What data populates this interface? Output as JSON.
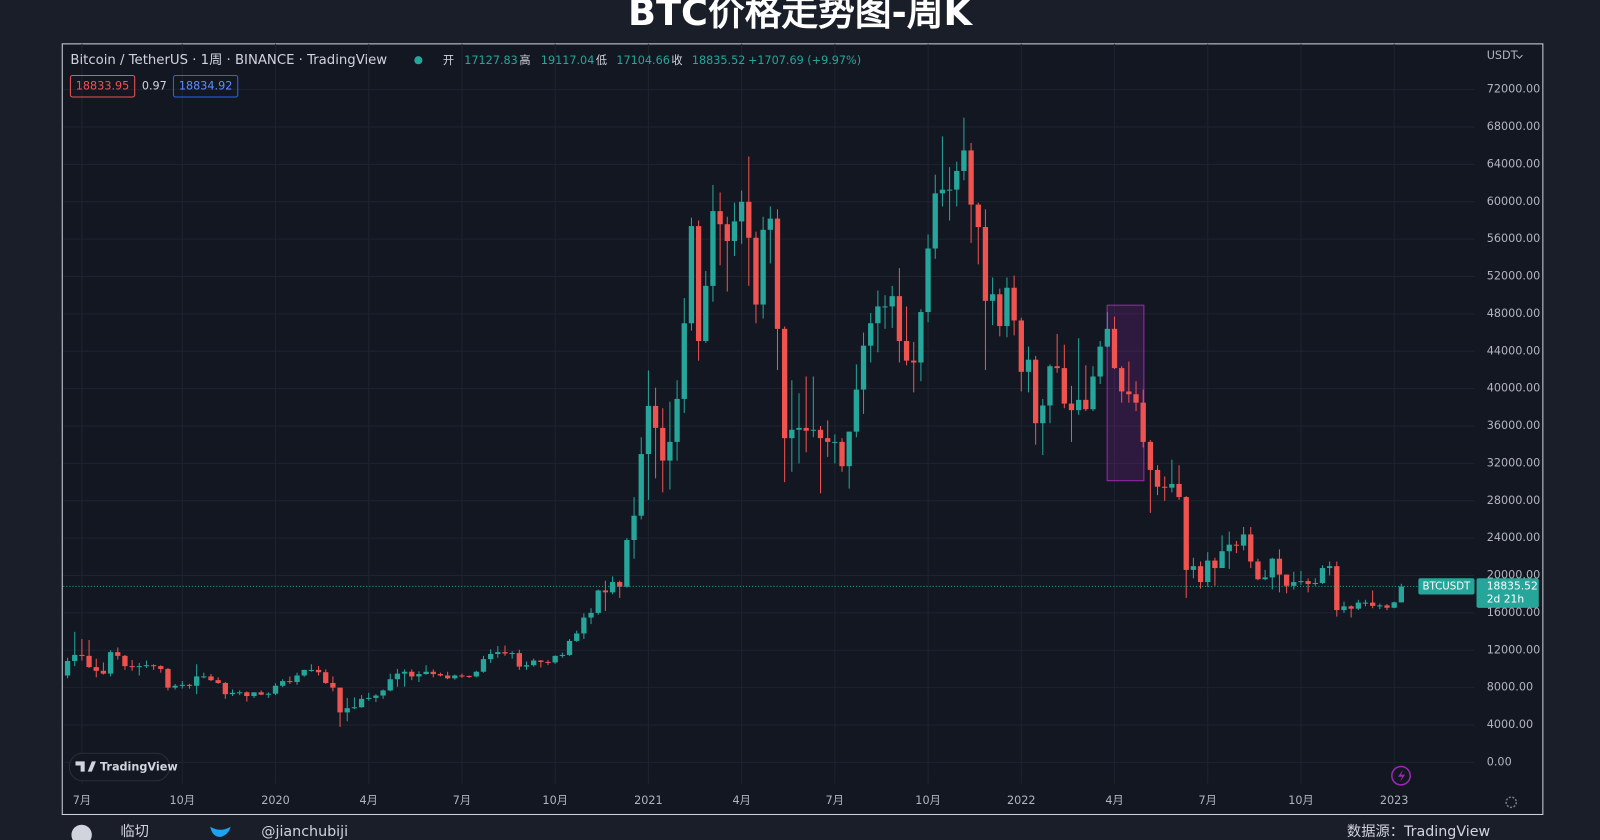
{
  "title": "BTC价格走势图-周K",
  "chart_data": {
    "type": "candlestick",
    "symbol_line": "Bitcoin / TetherUS · 1周 · BINANCE · TradingView",
    "ohlc_labels": [
      "开",
      "高",
      "低",
      "收"
    ],
    "change": "+1707.69 (+9.97%)",
    "bid": "18833.95",
    "spread": "0.97",
    "ask": "18834.92",
    "currency": "USDT",
    "ticker": "BTCUSDT",
    "countdown": "2d 21h",
    "logo": "TradingView",
    "up_color": "#26a69a",
    "down_color": "#ef5350",
    "grid": true,
    "xlim": [
      -0.6,
      196.2
    ],
    "xticks": [
      {
        "value": 2,
        "label": "7月"
      },
      {
        "value": 16,
        "label": "10月"
      },
      {
        "value": 29,
        "label": "2020"
      },
      {
        "value": 42,
        "label": "4月"
      },
      {
        "value": 55,
        "label": "7月"
      },
      {
        "value": 68,
        "label": "10月"
      },
      {
        "value": 81,
        "label": "2021"
      },
      {
        "value": 94,
        "label": "4月"
      },
      {
        "value": 107,
        "label": "7月"
      },
      {
        "value": 120,
        "label": "10月"
      },
      {
        "value": 133,
        "label": "2022"
      },
      {
        "value": 146,
        "label": "4月"
      },
      {
        "value": 159,
        "label": "7月"
      },
      {
        "value": 172,
        "label": "10月"
      },
      {
        "value": 185,
        "label": "2023"
      }
    ],
    "ylim": [
      -2300,
      76900
    ],
    "yticks": [
      {
        "value": 0,
        "label": "0.00"
      },
      {
        "value": 4000,
        "label": "4000.00"
      },
      {
        "value": 8000,
        "label": "8000.00"
      },
      {
        "value": 12000,
        "label": "12000.00"
      },
      {
        "value": 16000,
        "label": "16000.00"
      },
      {
        "value": 20000,
        "label": "20000.00"
      },
      {
        "value": 24000,
        "label": "24000.00"
      },
      {
        "value": 28000,
        "label": "28000.00"
      },
      {
        "value": 32000,
        "label": "32000.00"
      },
      {
        "value": 36000,
        "label": "36000.00"
      },
      {
        "value": 40000,
        "label": "40000.00"
      },
      {
        "value": 44000,
        "label": "44000.00"
      },
      {
        "value": 48000,
        "label": "48000.00"
      },
      {
        "value": 52000,
        "label": "52000.00"
      },
      {
        "value": 56000,
        "label": "56000.00"
      },
      {
        "value": 60000,
        "label": "60000.00"
      },
      {
        "value": 64000,
        "label": "64000.00"
      },
      {
        "value": 68000,
        "label": "68000.00"
      },
      {
        "value": 72000,
        "label": "72000.00"
      }
    ],
    "ohlc": [
      [
        9300,
        11200,
        9000,
        10850
      ],
      [
        10850,
        13970,
        10300,
        11500
      ],
      [
        11500,
        13200,
        10900,
        11400
      ],
      [
        11400,
        13100,
        10100,
        10200
      ],
      [
        10200,
        11100,
        9100,
        9800
      ],
      [
        9800,
        10700,
        9400,
        9500
      ],
      [
        9500,
        12000,
        9200,
        11800
      ],
      [
        11800,
        12300,
        11000,
        11400
      ],
      [
        11400,
        11500,
        9900,
        10300
      ],
      [
        10300,
        10950,
        9800,
        10200
      ],
      [
        10200,
        10650,
        9300,
        10300
      ],
      [
        10300,
        10900,
        10100,
        10400
      ],
      [
        10400,
        10500,
        9900,
        10300
      ],
      [
        10300,
        10400,
        9600,
        10000
      ],
      [
        10000,
        10100,
        7700,
        8000
      ],
      [
        8000,
        8400,
        7800,
        8200
      ],
      [
        8200,
        8700,
        7900,
        8300
      ],
      [
        8300,
        8400,
        7900,
        8200
      ],
      [
        8200,
        10500,
        7300,
        9200
      ],
      [
        9200,
        9600,
        9000,
        9200
      ],
      [
        9200,
        9450,
        8700,
        8800
      ],
      [
        8800,
        9100,
        8400,
        8500
      ],
      [
        8500,
        8600,
        6800,
        7300
      ],
      [
        7300,
        7800,
        7100,
        7450
      ],
      [
        7450,
        7700,
        7200,
        7500
      ],
      [
        7500,
        7600,
        6500,
        7100
      ],
      [
        7100,
        7500,
        6900,
        7500
      ],
      [
        7500,
        7700,
        7200,
        7250
      ],
      [
        7250,
        7500,
        6900,
        7350
      ],
      [
        7350,
        8450,
        7200,
        8200
      ],
      [
        8200,
        8900,
        8050,
        8700
      ],
      [
        8700,
        9200,
        8400,
        8600
      ],
      [
        8600,
        9600,
        8300,
        9300
      ],
      [
        9300,
        9900,
        9150,
        9900
      ],
      [
        9900,
        10500,
        9700,
        9900
      ],
      [
        9900,
        10300,
        9300,
        9650
      ],
      [
        9650,
        9950,
        8400,
        8500
      ],
      [
        8500,
        9200,
        7600,
        8000
      ],
      [
        8000,
        8000,
        3800,
        5350
      ],
      [
        5350,
        6900,
        4400,
        5800
      ],
      [
        5800,
        6950,
        5700,
        5900
      ],
      [
        5900,
        7200,
        5850,
        6800
      ],
      [
        6800,
        7450,
        6600,
        6900
      ],
      [
        6900,
        7300,
        6450,
        7150
      ],
      [
        7150,
        7800,
        6800,
        7700
      ],
      [
        7700,
        9500,
        7600,
        8900
      ],
      [
        8900,
        10000,
        8100,
        9500
      ],
      [
        9500,
        9950,
        8100,
        9700
      ],
      [
        9700,
        9950,
        8800,
        9200
      ],
      [
        9200,
        9750,
        8600,
        9450
      ],
      [
        9450,
        10400,
        9400,
        9700
      ],
      [
        9700,
        9950,
        9100,
        9450
      ],
      [
        9450,
        9600,
        9200,
        9300
      ],
      [
        9300,
        9700,
        8900,
        9000
      ],
      [
        9000,
        9400,
        8850,
        9300
      ],
      [
        9300,
        9500,
        9050,
        9250
      ],
      [
        9250,
        9300,
        9050,
        9200
      ],
      [
        9200,
        9800,
        9100,
        9700
      ],
      [
        9700,
        11400,
        9600,
        11050
      ],
      [
        11050,
        12100,
        10650,
        11600
      ],
      [
        11600,
        12450,
        11200,
        11800
      ],
      [
        11800,
        12500,
        11400,
        11650
      ],
      [
        11650,
        11900,
        11100,
        11700
      ],
      [
        11700,
        12050,
        9900,
        10250
      ],
      [
        10250,
        10800,
        9900,
        10400
      ],
      [
        10400,
        11100,
        10250,
        10900
      ],
      [
        10900,
        10950,
        10150,
        10750
      ],
      [
        10750,
        10950,
        10400,
        10700
      ],
      [
        10700,
        11450,
        10550,
        11400
      ],
      [
        11400,
        11750,
        11200,
        11500
      ],
      [
        11500,
        13200,
        11400,
        13000
      ],
      [
        13000,
        14100,
        12900,
        13800
      ],
      [
        13800,
        15950,
        13200,
        15500
      ],
      [
        15500,
        16500,
        14800,
        16000
      ],
      [
        16000,
        18500,
        15800,
        18400
      ],
      [
        18400,
        19450,
        16200,
        18200
      ],
      [
        18200,
        19900,
        18000,
        19300
      ],
      [
        19300,
        19450,
        17600,
        18800
      ],
      [
        18800,
        24000,
        18700,
        23800
      ],
      [
        23800,
        28400,
        21800,
        26400
      ],
      [
        26400,
        34800,
        26000,
        33000
      ],
      [
        33000,
        41950,
        28100,
        38150
      ],
      [
        38150,
        40100,
        30400,
        35800
      ],
      [
        35800,
        37900,
        28900,
        32300
      ],
      [
        32300,
        38600,
        29200,
        34300
      ],
      [
        34300,
        40900,
        32300,
        38900
      ],
      [
        38900,
        49700,
        37400,
        47000
      ],
      [
        47000,
        58300,
        46200,
        57400
      ],
      [
        57400,
        58000,
        43000,
        45100
      ],
      [
        45100,
        52600,
        44900,
        51000
      ],
      [
        51000,
        61800,
        49300,
        59000
      ],
      [
        59000,
        61000,
        53200,
        57600
      ],
      [
        57600,
        58400,
        50400,
        55800
      ],
      [
        55800,
        59900,
        54200,
        57900
      ],
      [
        57900,
        61200,
        55500,
        60000
      ],
      [
        60000,
        64850,
        51000,
        56150
      ],
      [
        56150,
        56800,
        47000,
        49000
      ],
      [
        49000,
        58400,
        47500,
        57000
      ],
      [
        57000,
        59500,
        53400,
        58200
      ],
      [
        58200,
        59200,
        42000,
        46400
      ],
      [
        46400,
        46650,
        30000,
        34700
      ],
      [
        34700,
        40900,
        31100,
        35600
      ],
      [
        35600,
        39500,
        32000,
        35800
      ],
      [
        35800,
        41300,
        33200,
        35500
      ],
      [
        35500,
        41300,
        34800,
        35600
      ],
      [
        35600,
        36000,
        28800,
        34700
      ],
      [
        34700,
        36600,
        32700,
        34300
      ],
      [
        34300,
        35100,
        32000,
        34300
      ],
      [
        34300,
        34700,
        31100,
        31700
      ],
      [
        31700,
        35400,
        29300,
        35400
      ],
      [
        35400,
        42600,
        34800,
        39900
      ],
      [
        39900,
        46000,
        37300,
        44600
      ],
      [
        44600,
        48100,
        42800,
        47000
      ],
      [
        47000,
        50500,
        43900,
        48800
      ],
      [
        48800,
        50000,
        46400,
        48800
      ],
      [
        48800,
        51000,
        46500,
        49900
      ],
      [
        49900,
        52900,
        42800,
        45100
      ],
      [
        45100,
        48800,
        42500,
        43000
      ],
      [
        43000,
        45000,
        39600,
        42800
      ],
      [
        42800,
        48500,
        40800,
        48200
      ],
      [
        48200,
        56500,
        47100,
        55000
      ],
      [
        55000,
        62900,
        53900,
        60900
      ],
      [
        60900,
        67000,
        59500,
        61300
      ],
      [
        61300,
        63700,
        58000,
        61300
      ],
      [
        61300,
        64300,
        59500,
        63300
      ],
      [
        63300,
        69000,
        62300,
        65500
      ],
      [
        65500,
        66300,
        55600,
        59700
      ],
      [
        59700,
        59900,
        53300,
        57300
      ],
      [
        57300,
        59200,
        42000,
        49400
      ],
      [
        49400,
        51900,
        46800,
        50100
      ],
      [
        50100,
        50700,
        45600,
        46700
      ],
      [
        46700,
        51900,
        45500,
        50800
      ],
      [
        50800,
        52100,
        45700,
        47300
      ],
      [
        47300,
        47600,
        39700,
        41800
      ],
      [
        41800,
        44500,
        39600,
        43100
      ],
      [
        43100,
        43500,
        34000,
        36300
      ],
      [
        36300,
        38900,
        32900,
        38200
      ],
      [
        38200,
        42600,
        36300,
        42400
      ],
      [
        42400,
        45850,
        41700,
        42200
      ],
      [
        42200,
        44700,
        37900,
        38400
      ],
      [
        38400,
        40300,
        34300,
        37700
      ],
      [
        37700,
        45400,
        37200,
        38800
      ],
      [
        38800,
        42500,
        37600,
        37800
      ],
      [
        37800,
        42400,
        37600,
        41300
      ],
      [
        41300,
        45100,
        40500,
        44500
      ],
      [
        44500,
        48200,
        44400,
        46400
      ],
      [
        46400,
        47700,
        42100,
        42200
      ],
      [
        42200,
        42400,
        38500,
        39700
      ],
      [
        39700,
        42900,
        38500,
        39400
      ],
      [
        39400,
        40800,
        37600,
        38500
      ],
      [
        38500,
        39900,
        33700,
        34300
      ],
      [
        34300,
        34500,
        26700,
        31300
      ],
      [
        31300,
        31800,
        28600,
        29500
      ],
      [
        29500,
        30600,
        28000,
        29400
      ],
      [
        29400,
        32400,
        28900,
        29800
      ],
      [
        29800,
        31800,
        28100,
        28400
      ],
      [
        28400,
        28500,
        17600,
        20600
      ],
      [
        20600,
        21900,
        19700,
        21000
      ],
      [
        21000,
        21500,
        18600,
        19300
      ],
      [
        19300,
        22500,
        18800,
        21600
      ],
      [
        21600,
        21900,
        18900,
        20800
      ],
      [
        20800,
        24300,
        20800,
        22600
      ],
      [
        22600,
        24700,
        20700,
        23300
      ],
      [
        23300,
        23700,
        22400,
        23200
      ],
      [
        23200,
        25200,
        22700,
        24400
      ],
      [
        24400,
        25200,
        20800,
        21500
      ],
      [
        21500,
        21800,
        19500,
        19600
      ],
      [
        19600,
        20600,
        19500,
        19800
      ],
      [
        19800,
        21900,
        18500,
        21800
      ],
      [
        21800,
        22800,
        18200,
        20100
      ],
      [
        20100,
        20100,
        18100,
        18900
      ],
      [
        18900,
        20400,
        18500,
        19300
      ],
      [
        19300,
        20500,
        19000,
        19400
      ],
      [
        19400,
        19700,
        18200,
        19100
      ],
      [
        19100,
        19700,
        18900,
        19200
      ],
      [
        19200,
        21100,
        19100,
        20800
      ],
      [
        20800,
        21500,
        20000,
        21000
      ],
      [
        21000,
        21500,
        15600,
        16300
      ],
      [
        16300,
        17200,
        16000,
        16700
      ],
      [
        16700,
        16800,
        15500,
        16450
      ],
      [
        16450,
        17400,
        16300,
        17100
      ],
      [
        17100,
        17400,
        16700,
        17100
      ],
      [
        17100,
        18400,
        16500,
        16750
      ],
      [
        16750,
        17000,
        16400,
        16800
      ],
      [
        16800,
        16950,
        16300,
        16550
      ],
      [
        16550,
        17200,
        16500,
        17130
      ],
      [
        17127.83,
        19117.04,
        17104.66,
        18835.52
      ]
    ]
  },
  "footer": {
    "author": "临切",
    "handle": "@jianchubiji",
    "source": "数据源：TradingView"
  }
}
